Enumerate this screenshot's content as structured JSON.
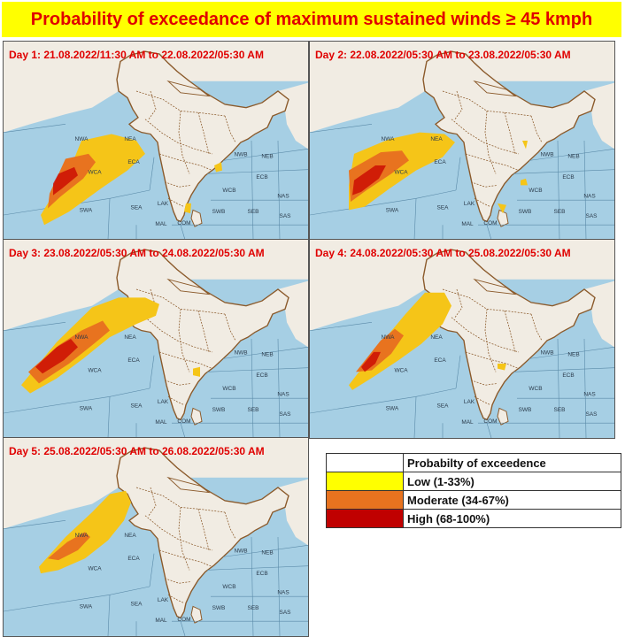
{
  "title": "Probability of exceedance of maximum sustained winds ≥ 45 kmph",
  "colors": {
    "sea": "#a6cfe4",
    "land": "#f1ece3",
    "low": "#f5c518",
    "moderate": "#e8731f",
    "high": "#c80000",
    "label": "#e00000"
  },
  "region_labels": [
    "NWA",
    "NEA",
    "ECA",
    "WCA",
    "SWA",
    "SEA",
    "LAK",
    "COM",
    "MAL",
    "SWB",
    "NWB",
    "NEB",
    "WCB",
    "ECB",
    "SEB",
    "NAS",
    "SAS"
  ],
  "panels": [
    {
      "label": "Day 1: 21.08.2022/11:30 AM to 22.08.2022/05:30  AM"
    },
    {
      "label": "Day 2: 22.08.2022/05:30 AM to 23.08.2022/05:30  AM"
    },
    {
      "label": "Day 3: 23.08.2022/05:30 AM to 24.08.2022/05:30  AM"
    },
    {
      "label": "Day 4: 24.08.2022/05:30 AM to 25.08.2022/05:30  AM"
    },
    {
      "label": "Day 5: 25.08.2022/05:30 AM to 26.08.2022/05:30  AM"
    }
  ],
  "legend": {
    "title": "Probabilty of exceedence",
    "items": [
      {
        "label": "Low (1-33%)",
        "color": "#ffff00"
      },
      {
        "label": "Moderate (34-67%)",
        "color": "#e8731f"
      },
      {
        "label": "High (68-100%)",
        "color": "#c00000"
      }
    ]
  }
}
